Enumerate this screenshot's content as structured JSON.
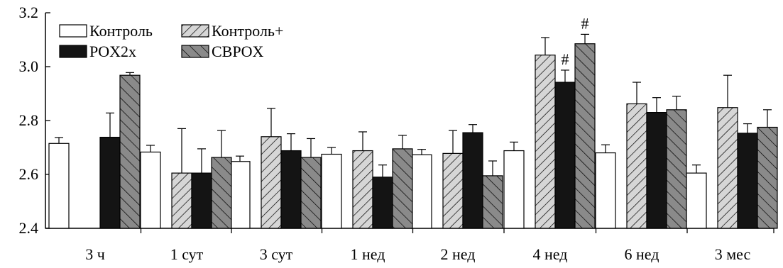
{
  "chart_data": {
    "type": "bar",
    "title": "",
    "xlabel": "",
    "ylabel": "",
    "ylim": [
      2.4,
      3.2
    ],
    "yticks": [
      "2.4",
      "2.6",
      "2.8",
      "3.0",
      "3.2"
    ],
    "categories": [
      "3 ч",
      "1 сут",
      "3 сут",
      "1 нед",
      "2 нед",
      "4 нед",
      "6 нед",
      "3 мес"
    ],
    "legend_position": "top-left",
    "series": [
      {
        "name": "Контроль",
        "pattern": "white",
        "values": [
          2.715,
          2.683,
          2.648,
          2.675,
          2.673,
          2.688,
          2.68,
          2.605
        ],
        "errors": [
          0.022,
          0.025,
          0.02,
          0.025,
          0.02,
          0.032,
          0.03,
          0.03
        ]
      },
      {
        "name": "Контроль+",
        "pattern": "light-hatch",
        "values": [
          null,
          2.605,
          2.74,
          2.688,
          2.678,
          3.043,
          2.862,
          2.848
        ],
        "errors": [
          null,
          0.165,
          0.105,
          0.07,
          0.085,
          0.065,
          0.08,
          0.12
        ]
      },
      {
        "name": "POX2x",
        "pattern": "black",
        "values": [
          2.738,
          2.605,
          2.688,
          2.59,
          2.755,
          2.942,
          2.83,
          2.753
        ],
        "errors": [
          0.09,
          0.09,
          0.063,
          0.045,
          0.03,
          0.045,
          0.055,
          0.035
        ]
      },
      {
        "name": "CBPOX",
        "pattern": "dark-hatch",
        "values": [
          2.968,
          2.663,
          2.663,
          2.695,
          2.595,
          3.085,
          2.84,
          2.775
        ],
        "errors": [
          0.01,
          0.1,
          0.07,
          0.05,
          0.055,
          0.035,
          0.05,
          0.065
        ]
      }
    ],
    "annotations": [
      {
        "text": "#",
        "category": "4 нед",
        "series": "POX2x"
      },
      {
        "text": "#",
        "category": "4 нед",
        "series": "CBPOX"
      }
    ]
  }
}
